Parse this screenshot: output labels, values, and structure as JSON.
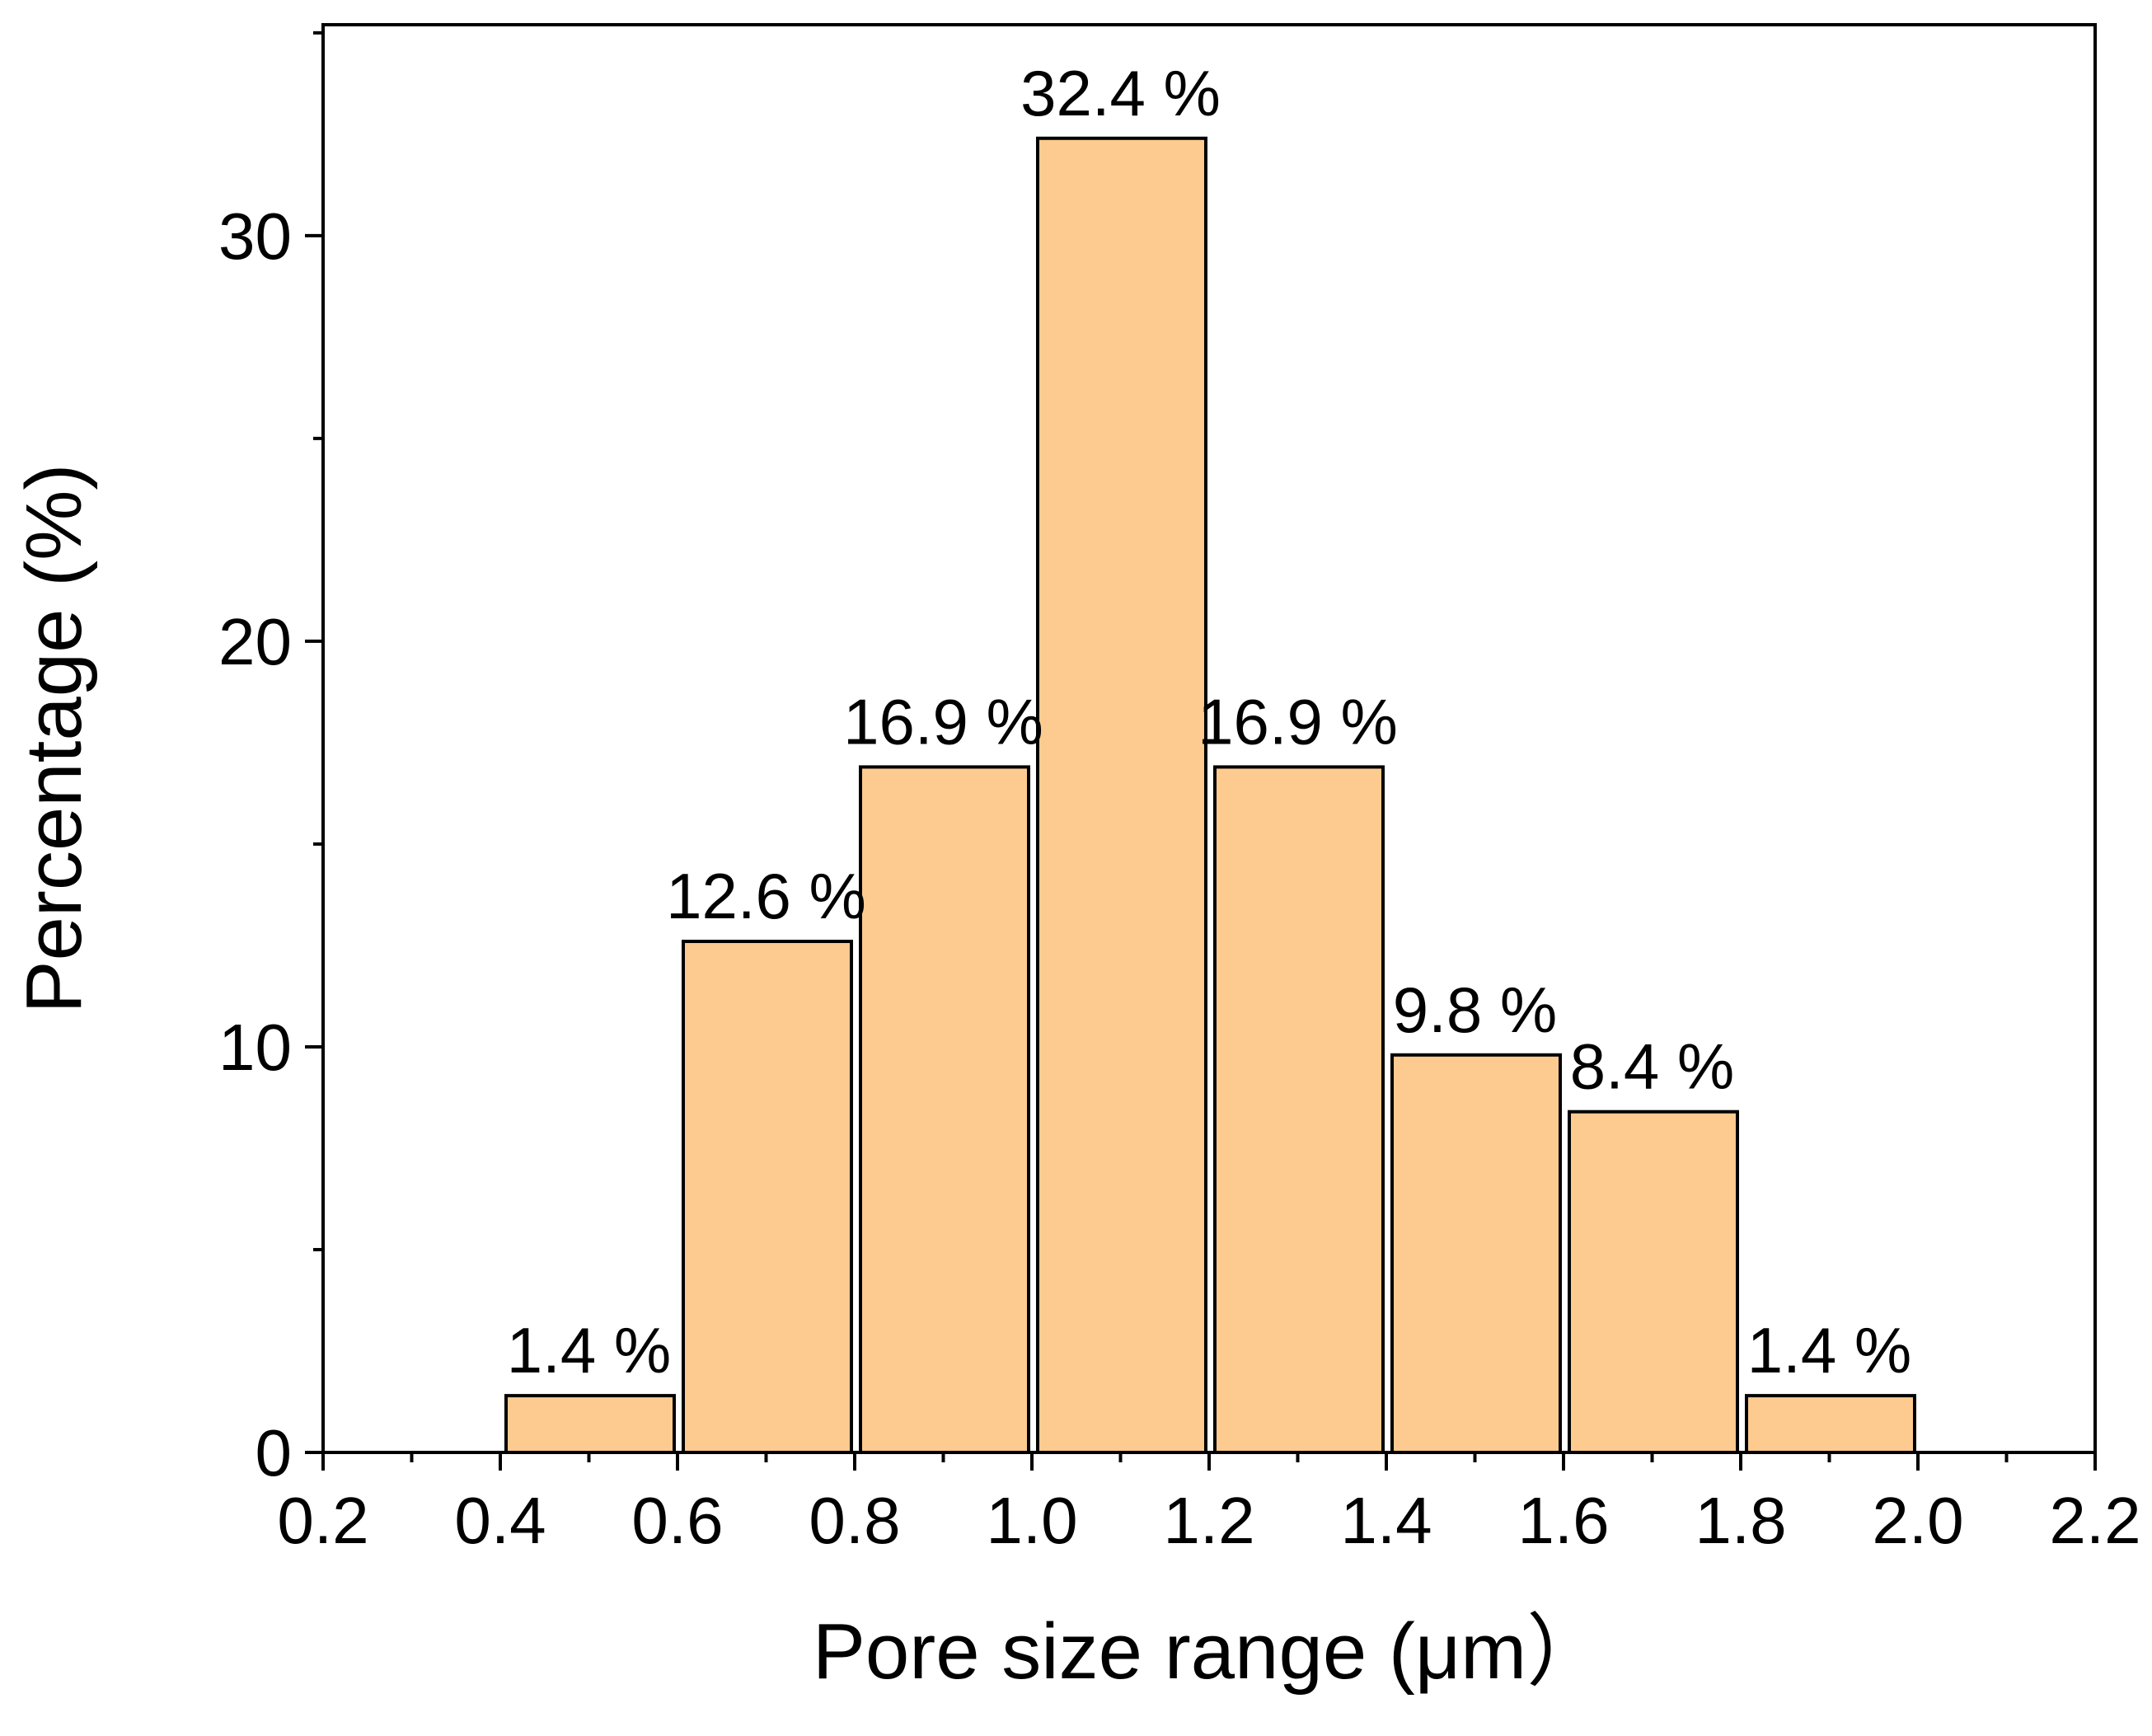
{
  "chart_data": {
    "type": "bar",
    "title": "",
    "xlabel": "Pore size range (μm）",
    "ylabel": "Percentage (%)",
    "bins": [
      {
        "x0": 0.4,
        "x1": 0.6,
        "value": 1.4,
        "label": "1.4 %"
      },
      {
        "x0": 0.6,
        "x1": 0.8,
        "value": 12.6,
        "label": "12.6 %"
      },
      {
        "x0": 0.8,
        "x1": 1.0,
        "value": 16.9,
        "label": "16.9 %"
      },
      {
        "x0": 1.0,
        "x1": 1.2,
        "value": 32.4,
        "label": "32.4 %"
      },
      {
        "x0": 1.2,
        "x1": 1.4,
        "value": 16.9,
        "label": "16.9 %"
      },
      {
        "x0": 1.4,
        "x1": 1.6,
        "value": 9.8,
        "label": "9.8 %"
      },
      {
        "x0": 1.6,
        "x1": 1.8,
        "value": 8.4,
        "label": "8.4 %"
      },
      {
        "x0": 1.8,
        "x1": 2.0,
        "value": 1.4,
        "label": "1.4 %"
      }
    ],
    "xlim": [
      0.2,
      2.2
    ],
    "ylim": [
      0,
      35.2
    ],
    "x_ticks": [
      "0.2",
      "0.4",
      "0.6",
      "0.8",
      "1.0",
      "1.2",
      "1.4",
      "1.6",
      "1.8",
      "2.0",
      "2.2"
    ],
    "y_ticks": [
      "0",
      "10",
      "20",
      "30"
    ],
    "grid": false,
    "bar_color": "#FDCB8F",
    "bar_edge_color": "#000000"
  }
}
